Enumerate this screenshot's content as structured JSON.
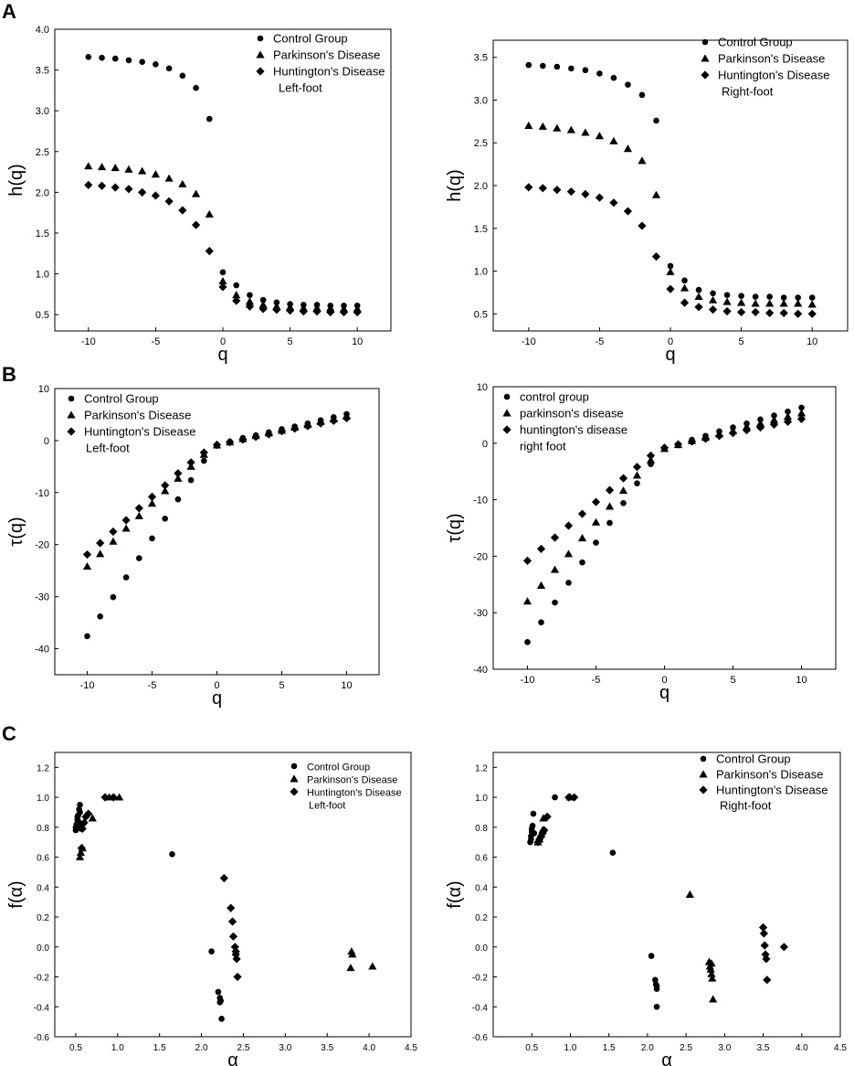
{
  "panel_letters": [
    "A",
    "B",
    "C"
  ],
  "chart_data": [
    {
      "id": "A-left",
      "type": "scatter",
      "xlabel": "q",
      "ylabel": "h(q)",
      "xlim": [
        -12.5,
        12.5
      ],
      "ylim": [
        0.3,
        4.0
      ],
      "xticks": [
        -10,
        -5,
        0,
        5,
        10
      ],
      "xtick_labels": [
        "-10",
        "-5",
        "0",
        "5",
        "10"
      ],
      "yticks": [
        0.5,
        1.0,
        1.5,
        2.0,
        2.5,
        3.0,
        3.5,
        4.0
      ],
      "ytick_labels": [
        "0.5",
        "1.0",
        "1.5",
        "2.0",
        "2.5",
        "3.0",
        "3.5",
        "4.0"
      ],
      "legend_position": "top-right",
      "legend_note": "Left-foot",
      "x": [
        -10,
        -9,
        -8,
        -7,
        -6,
        -5,
        -4,
        -3,
        -2,
        -1,
        0,
        1,
        2,
        3,
        4,
        5,
        6,
        7,
        8,
        9,
        10
      ],
      "series": [
        {
          "name": "Control Group",
          "marker": "circle",
          "values": [
            3.66,
            3.65,
            3.64,
            3.62,
            3.6,
            3.57,
            3.52,
            3.43,
            3.28,
            2.9,
            1.02,
            0.86,
            0.74,
            0.68,
            0.65,
            0.63,
            0.62,
            0.62,
            0.61,
            0.61,
            0.61
          ]
        },
        {
          "name": "Parkinson's Disease",
          "marker": "triangle",
          "values": [
            2.32,
            2.31,
            2.3,
            2.28,
            2.26,
            2.22,
            2.17,
            2.1,
            1.98,
            1.73,
            0.91,
            0.74,
            0.66,
            0.62,
            0.6,
            0.59,
            0.58,
            0.58,
            0.58,
            0.57,
            0.57
          ]
        },
        {
          "name": "Huntington's Disease",
          "marker": "diamond",
          "values": [
            2.09,
            2.08,
            2.06,
            2.04,
            2.0,
            1.96,
            1.89,
            1.78,
            1.6,
            1.28,
            0.84,
            0.67,
            0.6,
            0.57,
            0.56,
            0.55,
            0.54,
            0.54,
            0.53,
            0.53,
            0.53
          ]
        }
      ]
    },
    {
      "id": "A-right",
      "type": "scatter",
      "xlabel": "q",
      "ylabel": "h(q)",
      "xlim": [
        -12.5,
        12.5
      ],
      "ylim": [
        0.3,
        3.7
      ],
      "xticks": [
        -10,
        -5,
        0,
        5,
        10
      ],
      "xtick_labels": [
        "-10",
        "-5",
        "0",
        "5",
        "10"
      ],
      "yticks": [
        0.5,
        1.0,
        1.5,
        2.0,
        2.5,
        3.0,
        3.5
      ],
      "ytick_labels": [
        "0.5",
        "1.0",
        "1.5",
        "2.0",
        "2.5",
        "3.0",
        "3.5"
      ],
      "legend_position": "top-right",
      "legend_note": "Right-foot",
      "x": [
        -10,
        -9,
        -8,
        -7,
        -6,
        -5,
        -4,
        -3,
        -2,
        -1,
        0,
        1,
        2,
        3,
        4,
        5,
        6,
        7,
        8,
        9,
        10
      ],
      "series": [
        {
          "name": "Control Group",
          "marker": "circle",
          "values": [
            3.41,
            3.4,
            3.39,
            3.37,
            3.35,
            3.31,
            3.26,
            3.18,
            3.06,
            2.76,
            1.06,
            0.89,
            0.78,
            0.74,
            0.72,
            0.71,
            0.7,
            0.7,
            0.69,
            0.69,
            0.69
          ]
        },
        {
          "name": "Parkinson's Disease",
          "marker": "triangle",
          "values": [
            2.7,
            2.69,
            2.67,
            2.65,
            2.62,
            2.58,
            2.52,
            2.43,
            2.29,
            1.89,
            0.99,
            0.8,
            0.7,
            0.66,
            0.64,
            0.63,
            0.62,
            0.62,
            0.62,
            0.62,
            0.61
          ]
        },
        {
          "name": "Huntington's Disease",
          "marker": "diamond",
          "values": [
            1.98,
            1.97,
            1.95,
            1.93,
            1.9,
            1.86,
            1.8,
            1.7,
            1.53,
            1.17,
            0.79,
            0.63,
            0.58,
            0.55,
            0.53,
            0.52,
            0.52,
            0.51,
            0.51,
            0.5,
            0.5
          ]
        }
      ]
    },
    {
      "id": "B-left",
      "type": "scatter",
      "xlabel": "q",
      "ylabel": "τ(q)",
      "xlim": [
        -12.5,
        12.5
      ],
      "ylim": [
        -45,
        10
      ],
      "xticks": [
        -10,
        -5,
        0,
        5,
        10
      ],
      "xtick_labels": [
        "-10",
        "-5",
        "0",
        "5",
        "10"
      ],
      "yticks": [
        -40,
        -30,
        -20,
        -10,
        0,
        10
      ],
      "ytick_labels": [
        "-40",
        "-30",
        "-20",
        "-10",
        "0",
        "10"
      ],
      "legend_position": "top-left",
      "legend_note": "Left-foot",
      "x": [
        -10,
        -9,
        -8,
        -7,
        -6,
        -5,
        -4,
        -3,
        -2,
        -1,
        0,
        1,
        2,
        3,
        4,
        5,
        6,
        7,
        8,
        9,
        10
      ],
      "series": [
        {
          "name": "Control Group",
          "marker": "circle",
          "values": [
            -37.6,
            -33.8,
            -30.1,
            -26.3,
            -22.6,
            -18.8,
            -15.0,
            -11.3,
            -7.6,
            -3.9,
            -1.0,
            -0.2,
            0.5,
            1.0,
            1.6,
            2.2,
            2.7,
            3.3,
            3.9,
            4.5,
            5.1
          ]
        },
        {
          "name": "Parkinson's Disease",
          "marker": "triangle",
          "values": [
            -24.2,
            -21.8,
            -19.4,
            -16.9,
            -14.5,
            -12.1,
            -9.7,
            -7.3,
            -5.0,
            -2.7,
            -0.9,
            -0.3,
            0.3,
            0.9,
            1.4,
            1.9,
            2.5,
            3.0,
            3.6,
            4.1,
            4.7
          ]
        },
        {
          "name": "Huntington's Disease",
          "marker": "diamond",
          "values": [
            -21.9,
            -19.7,
            -17.5,
            -15.3,
            -13.0,
            -10.8,
            -8.6,
            -6.3,
            -4.2,
            -2.3,
            -0.8,
            -0.3,
            0.2,
            0.7,
            1.2,
            1.8,
            2.3,
            2.8,
            3.3,
            3.8,
            4.3
          ]
        }
      ]
    },
    {
      "id": "B-right",
      "type": "scatter",
      "xlabel": "q",
      "ylabel": "τ(q)",
      "xlim": [
        -12.5,
        12.5
      ],
      "ylim": [
        -40,
        10
      ],
      "xticks": [
        -10,
        -5,
        0,
        5,
        10
      ],
      "xtick_labels": [
        "-10",
        "-5",
        "0",
        "5",
        "10"
      ],
      "yticks": [
        -40,
        -30,
        -20,
        -10,
        0,
        10
      ],
      "ytick_labels": [
        "-40",
        "-30",
        "-20",
        "-10",
        "0",
        "10"
      ],
      "legend_position": "top-left",
      "legend_note": "right foot",
      "x": [
        -10,
        -9,
        -8,
        -7,
        -6,
        -5,
        -4,
        -3,
        -2,
        -1,
        0,
        1,
        2,
        3,
        4,
        5,
        6,
        7,
        8,
        9,
        10
      ],
      "series": [
        {
          "name": "control group",
          "marker": "circle",
          "values": [
            -35.2,
            -31.7,
            -28.2,
            -24.7,
            -21.1,
            -17.6,
            -14.1,
            -10.6,
            -7.1,
            -3.7,
            -1.0,
            -0.2,
            0.6,
            1.3,
            2.1,
            2.8,
            3.5,
            4.2,
            4.9,
            5.6,
            6.3
          ]
        },
        {
          "name": "parkinson's disease",
          "marker": "triangle",
          "values": [
            -28.0,
            -25.2,
            -22.4,
            -19.6,
            -16.8,
            -14.0,
            -11.2,
            -8.4,
            -5.7,
            -3.0,
            -1.0,
            -0.3,
            0.4,
            1.0,
            1.6,
            2.2,
            2.9,
            3.5,
            4.1,
            4.7,
            5.3
          ]
        },
        {
          "name": "huntington's disease",
          "marker": "diamond",
          "values": [
            -20.8,
            -18.7,
            -16.7,
            -14.6,
            -12.5,
            -10.4,
            -8.3,
            -6.2,
            -4.2,
            -2.2,
            -0.8,
            -0.2,
            0.3,
            0.8,
            1.3,
            1.8,
            2.3,
            2.8,
            3.3,
            3.8,
            4.3
          ]
        }
      ]
    },
    {
      "id": "C-left",
      "type": "scatter",
      "xlabel": "α",
      "ylabel": "f(α)",
      "xlim": [
        0.25,
        4.5
      ],
      "ylim": [
        -0.6,
        1.3
      ],
      "xticks": [
        0.5,
        1.0,
        1.5,
        2.0,
        2.5,
        3.0,
        3.5,
        4.0,
        4.5
      ],
      "xtick_labels": [
        "0.5",
        "1.0",
        "1.5",
        "2.0",
        "2.5",
        "3.0",
        "3.5",
        "4.0",
        "4.5"
      ],
      "yticks": [
        -0.6,
        -0.4,
        -0.2,
        0.0,
        0.2,
        0.4,
        0.6,
        0.8,
        1.0,
        1.2
      ],
      "ytick_labels": [
        "-0.6",
        "-0.4",
        "-0.2",
        "0.0",
        "0.2",
        "0.4",
        "0.6",
        "0.8",
        "1.0",
        "1.2"
      ],
      "legend_position": "top-right",
      "legend_note": "Left-foot",
      "series": [
        {
          "name": "Control Group",
          "marker": "circle",
          "x": [
            0.5,
            0.51,
            0.52,
            0.53,
            0.54,
            0.55,
            0.5,
            0.52,
            0.53,
            0.55,
            0.56,
            0.57,
            1.65,
            2.12,
            2.2,
            2.22,
            2.23,
            2.24,
            2.22
          ],
          "y": [
            0.8,
            0.82,
            0.85,
            0.88,
            0.92,
            0.95,
            0.78,
            0.87,
            0.84,
            0.9,
            0.79,
            0.82,
            0.62,
            -0.03,
            -0.3,
            -0.34,
            -0.36,
            -0.48,
            -0.37
          ]
        },
        {
          "name": "Parkinson's Disease",
          "marker": "triangle",
          "x": [
            0.55,
            0.56,
            0.58,
            0.7,
            0.9,
            1.02,
            3.78,
            3.8,
            3.79,
            4.04
          ],
          "y": [
            0.6,
            0.63,
            0.66,
            0.86,
            1.0,
            1.0,
            -0.14,
            -0.05,
            -0.03,
            -0.13
          ]
        },
        {
          "name": "Huntington's Disease",
          "marker": "diamond",
          "x": [
            0.57,
            0.58,
            0.6,
            0.62,
            0.65,
            0.85,
            0.95,
            2.27,
            2.35,
            2.37,
            2.38,
            2.4,
            2.41,
            2.42,
            2.43,
            2.41
          ],
          "y": [
            0.66,
            0.79,
            0.83,
            0.87,
            0.89,
            1.0,
            1.0,
            0.46,
            0.26,
            0.17,
            0.07,
            0.0,
            -0.05,
            -0.08,
            -0.2,
            -0.03
          ]
        }
      ]
    },
    {
      "id": "C-right",
      "type": "scatter",
      "xlabel": "α",
      "ylabel": "f(α)",
      "xlim": [
        0.0,
        4.5
      ],
      "ylim": [
        -0.6,
        1.3
      ],
      "xticks": [
        0.5,
        1.0,
        1.5,
        2.0,
        2.5,
        3.0,
        3.5,
        4.0,
        4.5
      ],
      "xtick_labels": [
        "0.5",
        "1.0",
        "1.5",
        "2.0",
        "2.5",
        "3.0",
        "3.5",
        "4.0",
        "4.5"
      ],
      "yticks": [
        -0.6,
        -0.4,
        -0.2,
        0.0,
        0.2,
        0.4,
        0.6,
        0.8,
        1.0,
        1.2
      ],
      "ytick_labels": [
        "-0.6",
        "-0.4",
        "-0.2",
        "0.0",
        "0.2",
        "0.4",
        "0.6",
        "0.8",
        "1.0",
        "1.2"
      ],
      "legend_position": "top-right",
      "legend_note": "Right-foot",
      "series": [
        {
          "name": "Control Group",
          "marker": "circle",
          "x": [
            0.48,
            0.49,
            0.5,
            0.51,
            0.52,
            0.5,
            0.49,
            0.53,
            0.8,
            1.55,
            2.05,
            2.1,
            2.11,
            2.12,
            2.12,
            2.12
          ],
          "y": [
            0.7,
            0.74,
            0.77,
            0.81,
            0.89,
            0.79,
            0.72,
            0.76,
            1.0,
            0.63,
            -0.06,
            -0.22,
            -0.25,
            -0.26,
            -0.28,
            -0.4
          ]
        },
        {
          "name": "Parkinson's Disease",
          "marker": "triangle",
          "x": [
            0.58,
            0.6,
            0.62,
            0.64,
            0.65,
            1.0,
            2.55,
            2.8,
            2.81,
            2.82,
            2.83,
            2.84,
            2.85,
            2.83
          ],
          "y": [
            0.7,
            0.72,
            0.75,
            0.78,
            0.86,
            1.0,
            0.35,
            -0.1,
            -0.13,
            -0.15,
            -0.18,
            -0.21,
            -0.35,
            -0.11
          ]
        },
        {
          "name": "Huntington's Disease",
          "marker": "diamond",
          "x": [
            0.58,
            0.6,
            0.62,
            0.64,
            0.66,
            0.7,
            0.98,
            1.05,
            3.5,
            3.51,
            3.52,
            3.53,
            3.54,
            3.55,
            3.77
          ],
          "y": [
            0.7,
            0.72,
            0.74,
            0.76,
            0.78,
            0.87,
            1.0,
            1.0,
            0.13,
            0.09,
            0.01,
            -0.05,
            -0.08,
            -0.22,
            0.0
          ]
        }
      ]
    }
  ]
}
